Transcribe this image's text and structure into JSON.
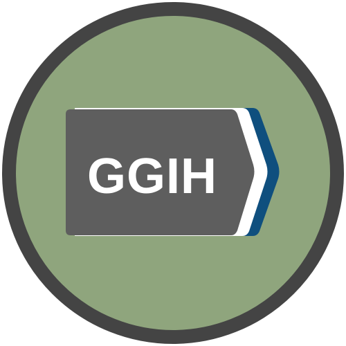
{
  "badge": {
    "label": "GGIH",
    "icon": "route-shield-icon",
    "colors": {
      "ring": "#444444",
      "fill": "#8fa57d",
      "shield": "#5e5e5e",
      "stripe_white": "#ffffff",
      "stripe_blue": "#0f4f7e",
      "text": "#ffffff"
    }
  }
}
